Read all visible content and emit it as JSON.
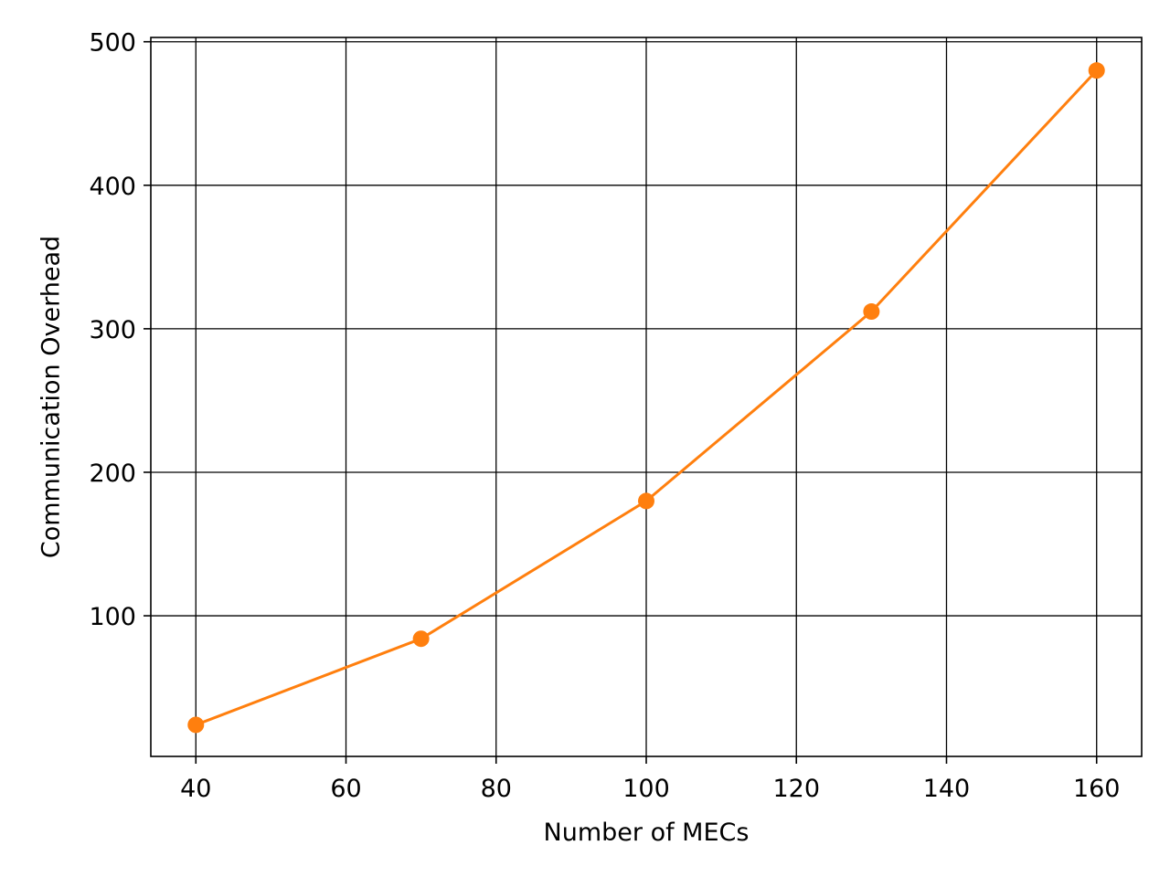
{
  "chart_data": {
    "type": "line",
    "title": "",
    "xlabel": "Number of MECs",
    "ylabel": "Communication Overhead",
    "x": [
      40,
      70,
      100,
      130,
      160
    ],
    "series": [
      {
        "values": [
          24,
          84,
          180,
          312,
          480
        ],
        "color": "#ff7f0e",
        "marker": "circle"
      }
    ],
    "xlim": [
      34,
      166
    ],
    "ylim": [
      2,
      503
    ],
    "xticks": [
      40,
      60,
      80,
      100,
      120,
      140,
      160
    ],
    "yticks": [
      100,
      200,
      300,
      400,
      500
    ],
    "grid": true,
    "legend": "none"
  }
}
